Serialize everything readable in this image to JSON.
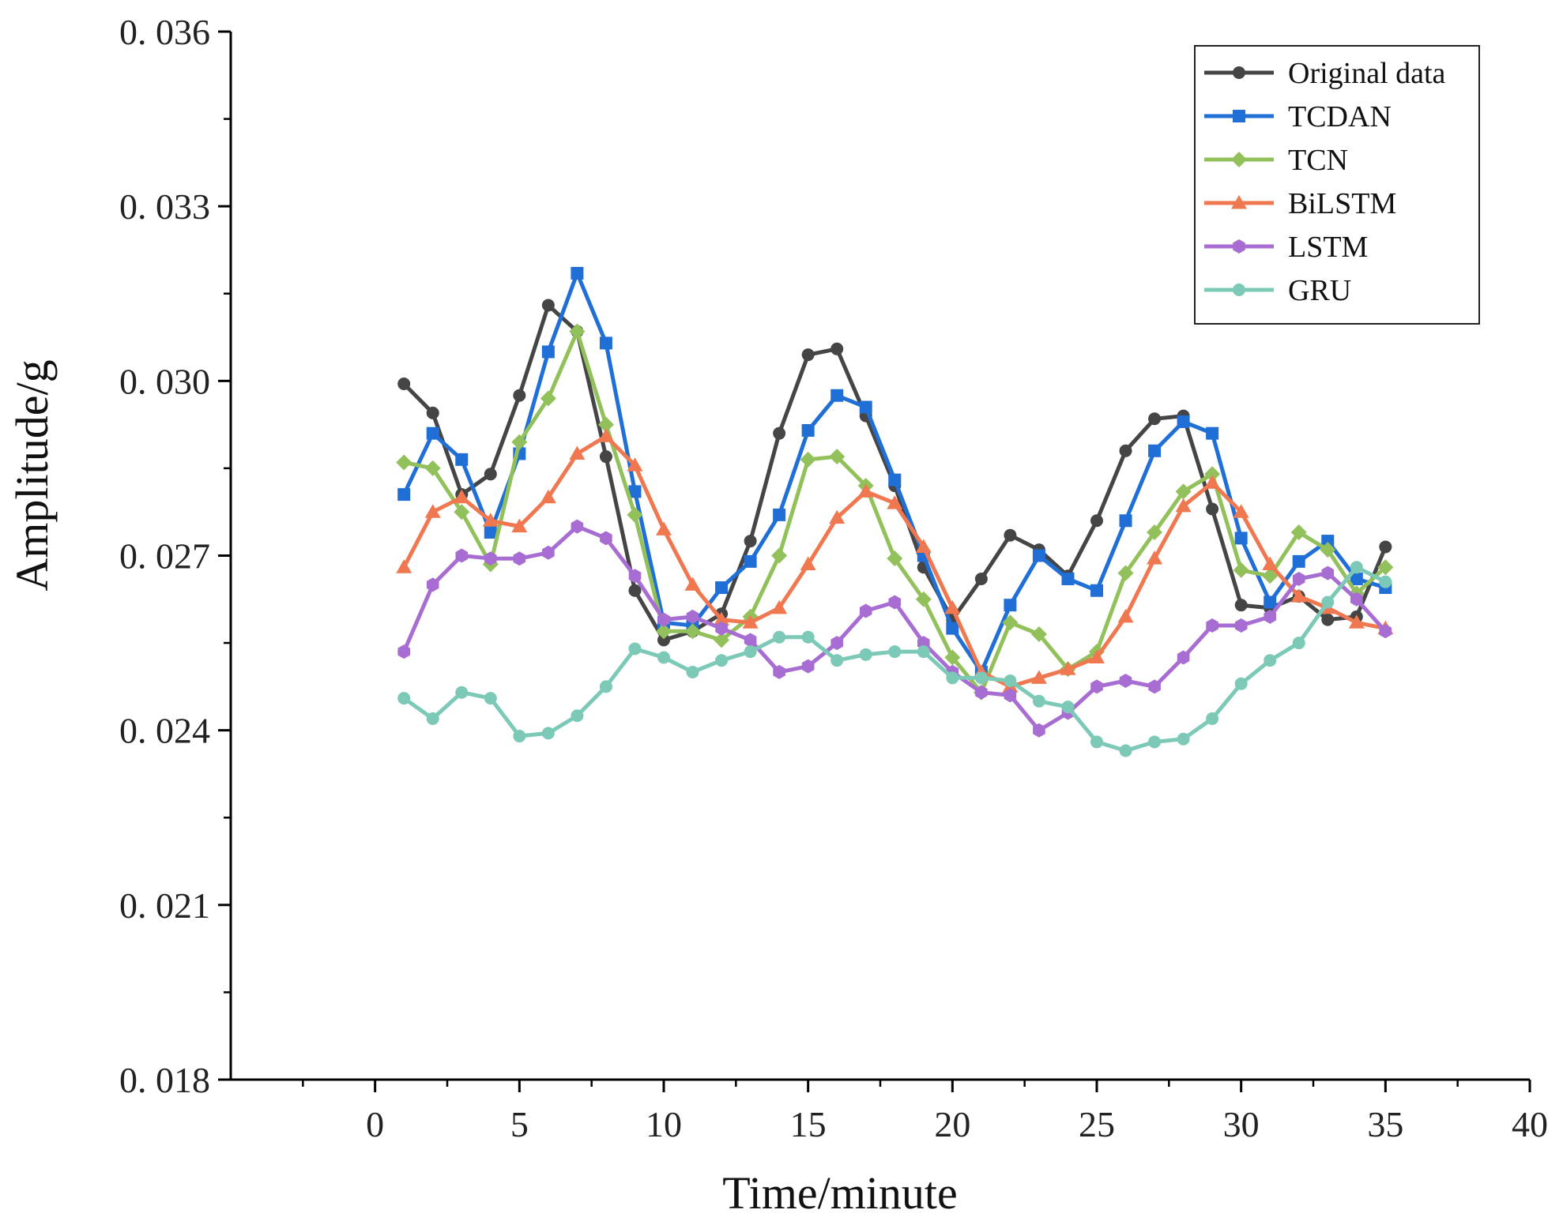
{
  "chart_data": {
    "type": "line",
    "title": "",
    "xlabel": "Time/minute",
    "ylabel": "Amplitude/g",
    "xlim": [
      -5,
      40
    ],
    "ylim": [
      0.018,
      0.036
    ],
    "x_ticks": [
      0,
      5,
      10,
      15,
      20,
      25,
      30,
      35,
      40
    ],
    "x_tick_labels": [
      "0",
      "5",
      "10",
      "15",
      "20",
      "25",
      "30",
      "35",
      "40"
    ],
    "y_ticks": [
      0.018,
      0.021,
      0.024,
      0.027,
      0.03,
      0.033,
      0.036
    ],
    "y_tick_labels": [
      "0. 018",
      "0. 021",
      "0. 024",
      "0. 027",
      "0. 030",
      "0. 033",
      "0. 036"
    ],
    "grid": false,
    "legend_position": "top-right",
    "x": [
      1,
      2,
      3,
      4,
      5,
      6,
      7,
      8,
      9,
      10,
      11,
      12,
      13,
      14,
      15,
      16,
      17,
      18,
      19,
      20,
      21,
      22,
      23,
      24,
      25,
      26,
      27,
      28,
      29,
      30,
      31,
      32,
      33,
      34,
      35
    ],
    "series": [
      {
        "name": "Original data",
        "color": "#454545",
        "marker": "circle",
        "values": [
          0.02995,
          0.02945,
          0.02805,
          0.0284,
          0.02975,
          0.0313,
          0.03085,
          0.0287,
          0.0264,
          0.02555,
          0.0257,
          0.026,
          0.02725,
          0.0291,
          0.03045,
          0.03055,
          0.0294,
          0.0282,
          0.0268,
          0.0259,
          0.0266,
          0.02735,
          0.0271,
          0.02665,
          0.0276,
          0.0288,
          0.02935,
          0.0294,
          0.0278,
          0.02615,
          0.0261,
          0.0263,
          0.0259,
          0.02595,
          0.02715
        ]
      },
      {
        "name": "TCDAN",
        "color": "#1f6fd6",
        "marker": "square",
        "values": [
          0.02805,
          0.0291,
          0.02865,
          0.0274,
          0.02875,
          0.0305,
          0.03185,
          0.03065,
          0.0281,
          0.02585,
          0.0258,
          0.02645,
          0.0269,
          0.0277,
          0.02915,
          0.02975,
          0.02955,
          0.0283,
          0.027,
          0.02575,
          0.025,
          0.02615,
          0.027,
          0.0266,
          0.0264,
          0.0276,
          0.0288,
          0.0293,
          0.0291,
          0.0273,
          0.0262,
          0.0269,
          0.02725,
          0.0266,
          0.02645
        ]
      },
      {
        "name": "TCN",
        "color": "#92c05a",
        "marker": "diamond",
        "values": [
          0.0286,
          0.0285,
          0.02775,
          0.02685,
          0.02895,
          0.0297,
          0.03085,
          0.02925,
          0.0277,
          0.0257,
          0.0257,
          0.02555,
          0.02595,
          0.027,
          0.02865,
          0.0287,
          0.0282,
          0.02695,
          0.02625,
          0.02525,
          0.02465,
          0.02585,
          0.02565,
          0.02505,
          0.02535,
          0.0267,
          0.0274,
          0.0281,
          0.0284,
          0.02675,
          0.02665,
          0.0274,
          0.0271,
          0.02635,
          0.0268
        ]
      },
      {
        "name": "BiLSTM",
        "color": "#f07850",
        "marker": "triangle",
        "values": [
          0.0268,
          0.02775,
          0.028,
          0.0276,
          0.0275,
          0.028,
          0.02875,
          0.02905,
          0.02855,
          0.02745,
          0.0265,
          0.0259,
          0.02585,
          0.0261,
          0.02685,
          0.02765,
          0.0281,
          0.0279,
          0.02715,
          0.0261,
          0.025,
          0.02475,
          0.0249,
          0.02505,
          0.02525,
          0.02595,
          0.02695,
          0.02785,
          0.02825,
          0.02775,
          0.02685,
          0.0263,
          0.0261,
          0.02585,
          0.02575
        ]
      },
      {
        "name": "LSTM",
        "color": "#a76dd2",
        "marker": "hexagon",
        "values": [
          0.02535,
          0.0265,
          0.027,
          0.02695,
          0.02695,
          0.02705,
          0.0275,
          0.0273,
          0.02665,
          0.0259,
          0.02595,
          0.02575,
          0.02555,
          0.025,
          0.0251,
          0.0255,
          0.02605,
          0.0262,
          0.0255,
          0.025,
          0.02465,
          0.0246,
          0.024,
          0.0243,
          0.02475,
          0.02485,
          0.02475,
          0.02525,
          0.0258,
          0.0258,
          0.02595,
          0.0266,
          0.0267,
          0.02625,
          0.0257
        ]
      },
      {
        "name": "GRU",
        "color": "#7cc9b8",
        "marker": "circle",
        "values": [
          0.02455,
          0.0242,
          0.02465,
          0.02455,
          0.0239,
          0.02395,
          0.02425,
          0.02475,
          0.0254,
          0.02525,
          0.025,
          0.0252,
          0.02535,
          0.0256,
          0.0256,
          0.0252,
          0.0253,
          0.02535,
          0.02535,
          0.0249,
          0.0249,
          0.02485,
          0.0245,
          0.0244,
          0.0238,
          0.02365,
          0.0238,
          0.02385,
          0.0242,
          0.0248,
          0.0252,
          0.0255,
          0.0262,
          0.0268,
          0.02655
        ]
      }
    ]
  }
}
